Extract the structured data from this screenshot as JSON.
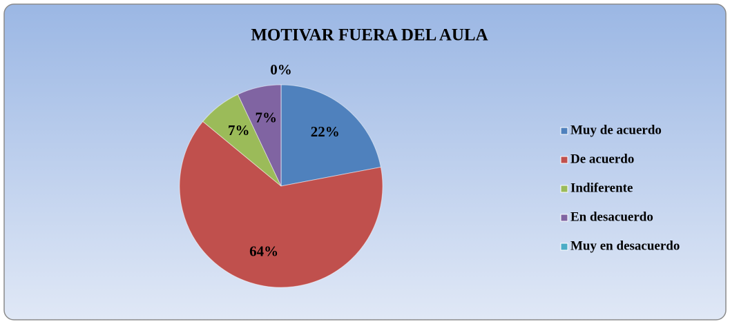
{
  "chart_data": {
    "type": "pie",
    "title": "MOTIVAR FUERA DEL AULA",
    "categories": [
      "Muy de acuerdo",
      "De acuerdo",
      "Indiferente",
      "En desacuerdo",
      "Muy en desacuerdo"
    ],
    "values": [
      22,
      64,
      7,
      7,
      0
    ],
    "value_labels": [
      "22%",
      "64%",
      "7%",
      "7%",
      "0%"
    ],
    "colors": [
      "#4f81bd",
      "#c0504d",
      "#9bbb59",
      "#8064a2",
      "#4bacc6"
    ],
    "legend": "right"
  }
}
